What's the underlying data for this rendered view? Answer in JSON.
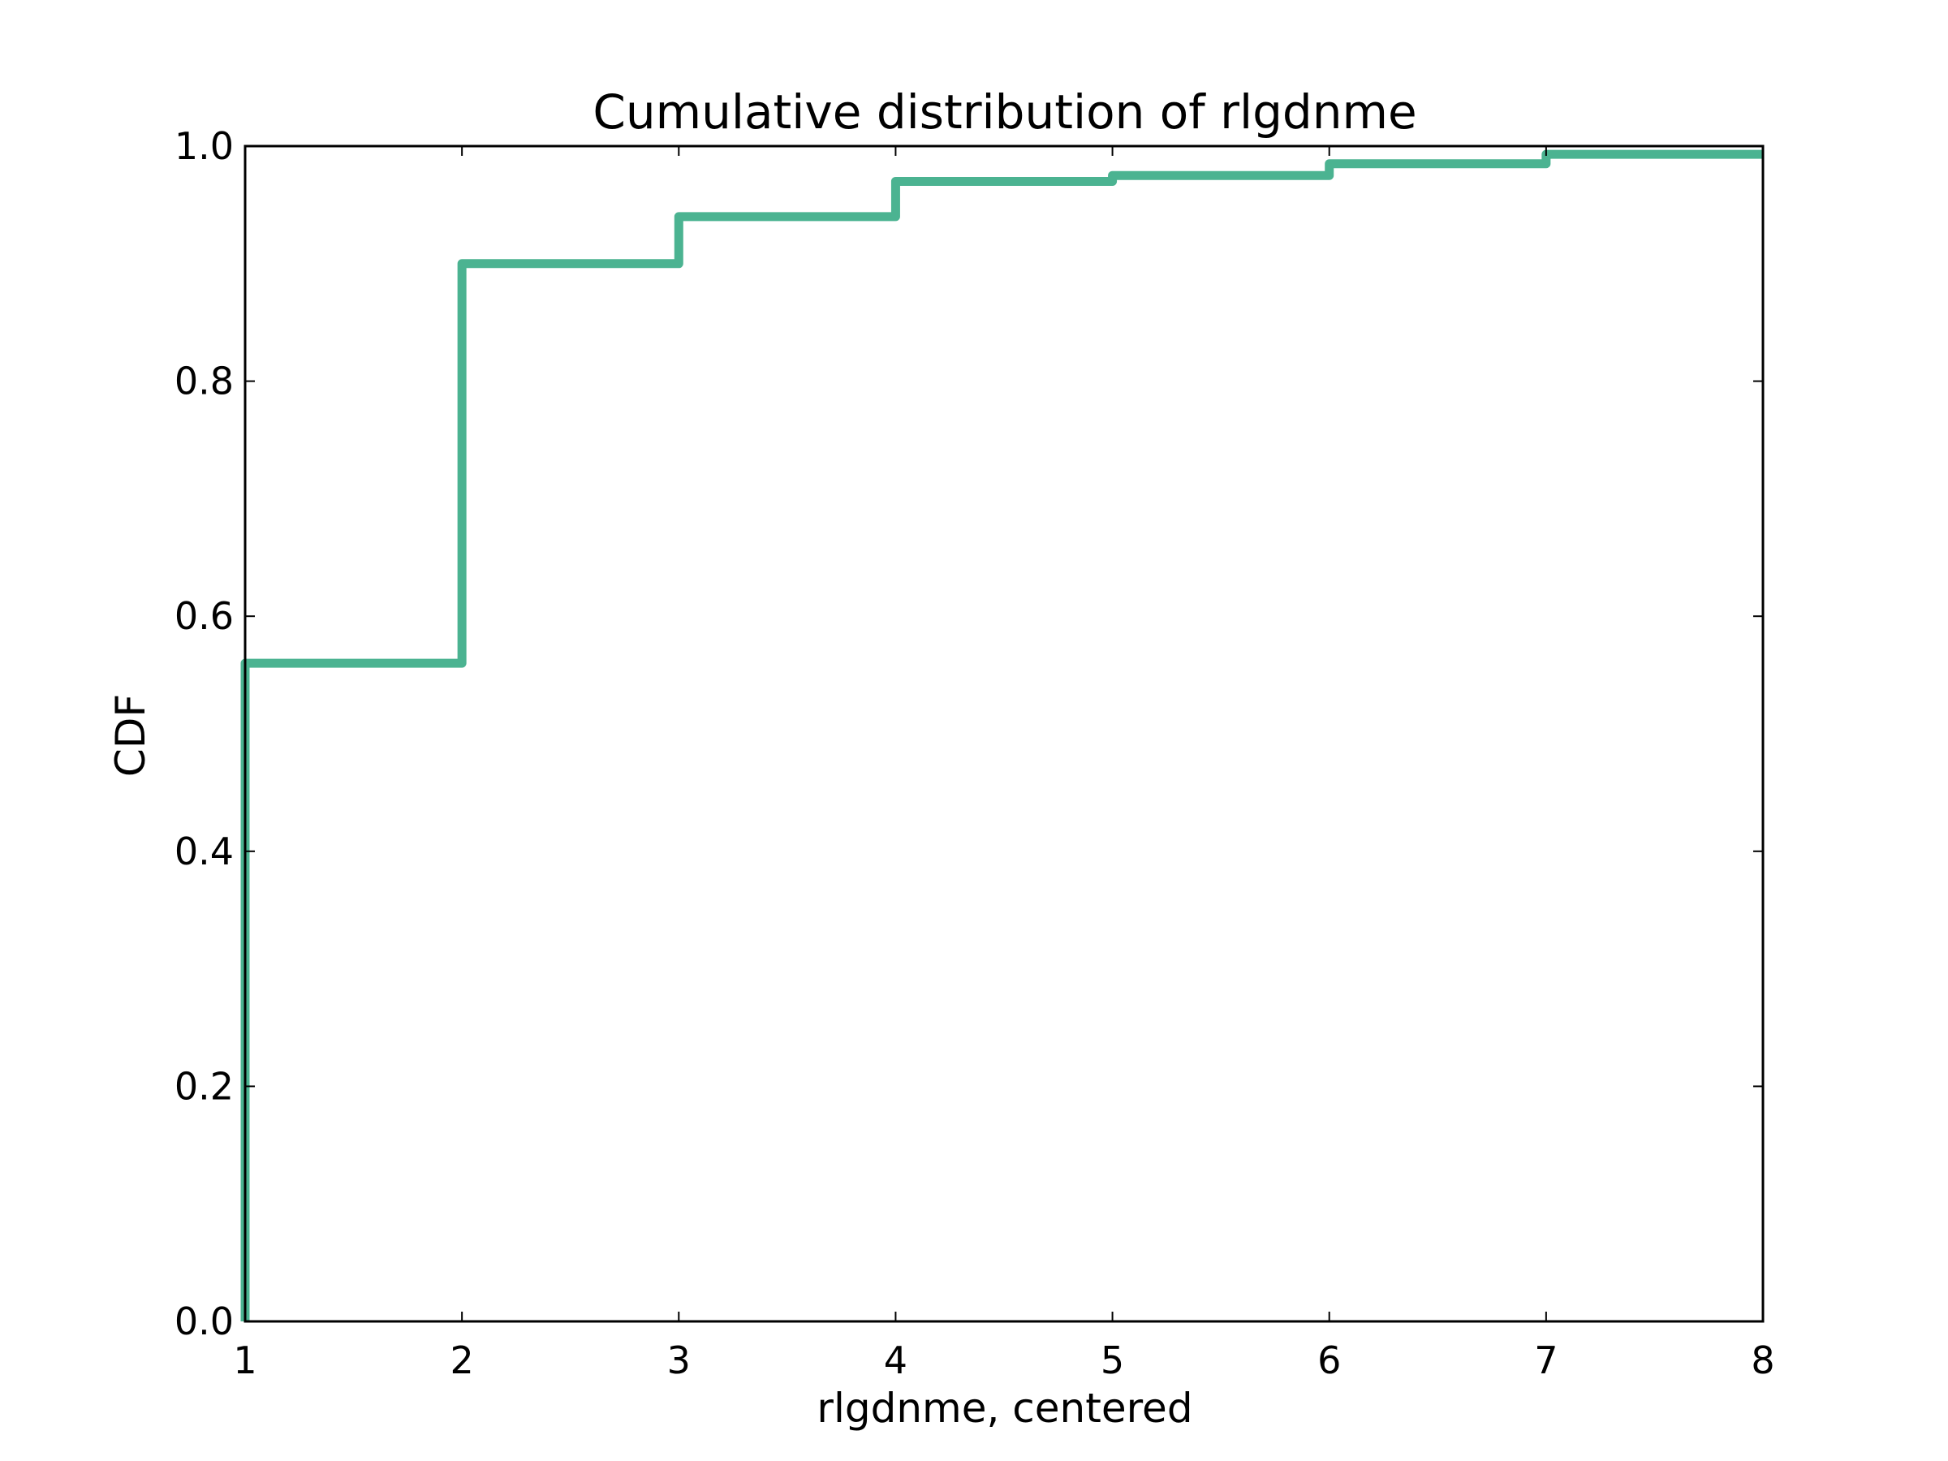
{
  "chart_data": {
    "type": "line",
    "title": "Cumulative distribution of rlgdnme",
    "xlabel": "rlgdnme, centered",
    "ylabel": "CDF",
    "xlim": [
      1,
      8
    ],
    "ylim": [
      0,
      1
    ],
    "x_ticks": [
      "1",
      "2",
      "3",
      "4",
      "5",
      "6",
      "7",
      "8"
    ],
    "y_ticks": [
      "0.0",
      "0.2",
      "0.4",
      "0.6",
      "0.8",
      "1.0"
    ],
    "grid": false,
    "legend": "none",
    "step": "post",
    "series": [
      {
        "color": "#4bb391",
        "x": [
          1,
          1,
          2,
          3,
          4,
          5,
          6,
          7,
          8
        ],
        "y": [
          0.0,
          0.56,
          0.9,
          0.94,
          0.97,
          0.975,
          0.985,
          0.993,
          0.993
        ]
      }
    ]
  }
}
